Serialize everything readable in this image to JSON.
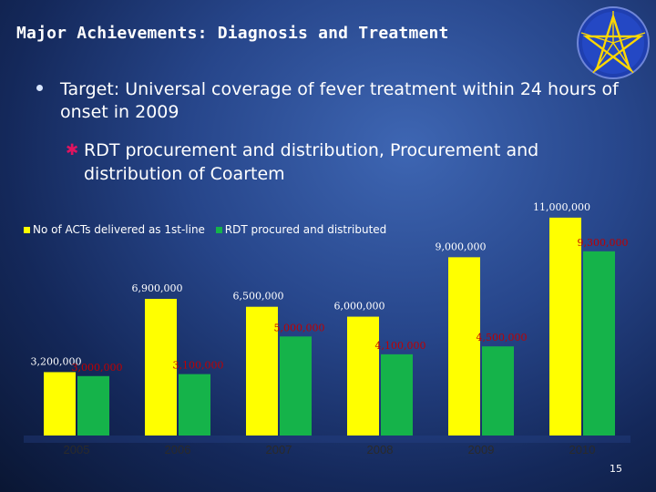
{
  "slide": {
    "title": "Major Achievements: Diagnosis and Treatment",
    "bullet1": "Target: Universal coverage of fever treatment within 24 hours of onset in 2009",
    "bullet2": "RDT procurement and distribution, Procurement and distribution of Coartem",
    "page_number": "15"
  },
  "colors": {
    "yellow": "#ffff00",
    "green": "#15b34a",
    "red_label": "#c00000",
    "white_label": "#ffffff",
    "axis_label": "#2a2a2a"
  },
  "chart_data": {
    "type": "bar",
    "categories": [
      "2005",
      "2006",
      "2007",
      "2008",
      "2009",
      "2010"
    ],
    "series": [
      {
        "name": "No of ACTs delivered as 1st-line",
        "values": [
          3200000,
          6900000,
          6500000,
          6000000,
          9000000,
          11000000
        ],
        "labels": [
          "3,200,000",
          "6,900,000",
          "6,500,000",
          "6,000,000",
          "9,000,000",
          "11,000,000"
        ]
      },
      {
        "name": "RDT procured and distributed",
        "values": [
          3000000,
          3100000,
          5000000,
          4100000,
          4500000,
          9300000
        ],
        "labels": [
          "3,000,000",
          "3,100,000",
          "5,000,000",
          "4,100,000",
          "4,500,000",
          "9,300,000"
        ]
      }
    ],
    "legend_position": "top-left",
    "grid": false,
    "ylim": [
      0,
      11500000
    ]
  }
}
